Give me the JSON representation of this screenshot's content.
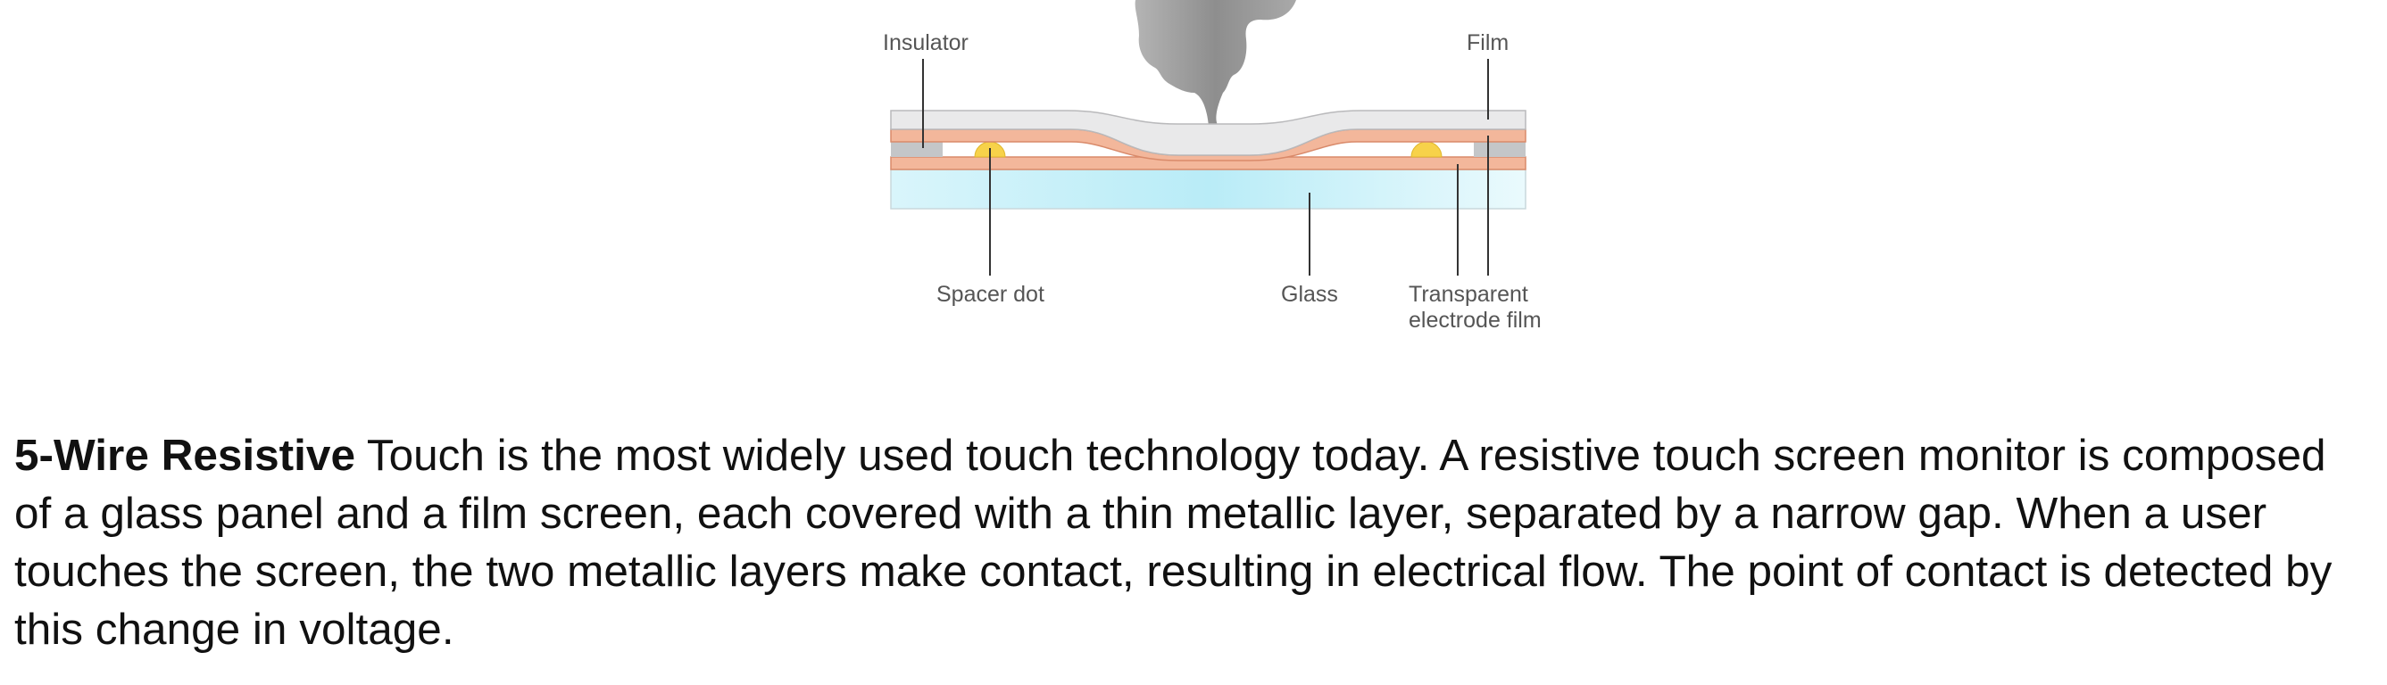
{
  "diagram": {
    "labels": {
      "insulator": "Insulator",
      "film": "Film",
      "spacer_dot": "Spacer dot",
      "glass": "Glass",
      "transparent_electrode_line1": "Transparent",
      "transparent_electrode_line2": "electrode film"
    },
    "colors": {
      "film": "#e9e9ea",
      "electrode": "#f3b79b",
      "electrode_edge": "#d98a6a",
      "insulator": "#c4c6c8",
      "spacer_dot": "#f7d24a",
      "glass_center": "#b9ecf7",
      "finger": "#9d9d9d"
    }
  },
  "description": {
    "bold_lead": "5-Wire Resistive",
    "body": " Touch is the most widely used touch technology today. A resistive touch screen monitor is composed of a glass panel and a film screen, each covered with a thin metallic layer, separated by a narrow gap. When a user touches the screen, the two metallic layers make contact, resulting in electrical flow. The point of contact is detected by this change in voltage."
  }
}
